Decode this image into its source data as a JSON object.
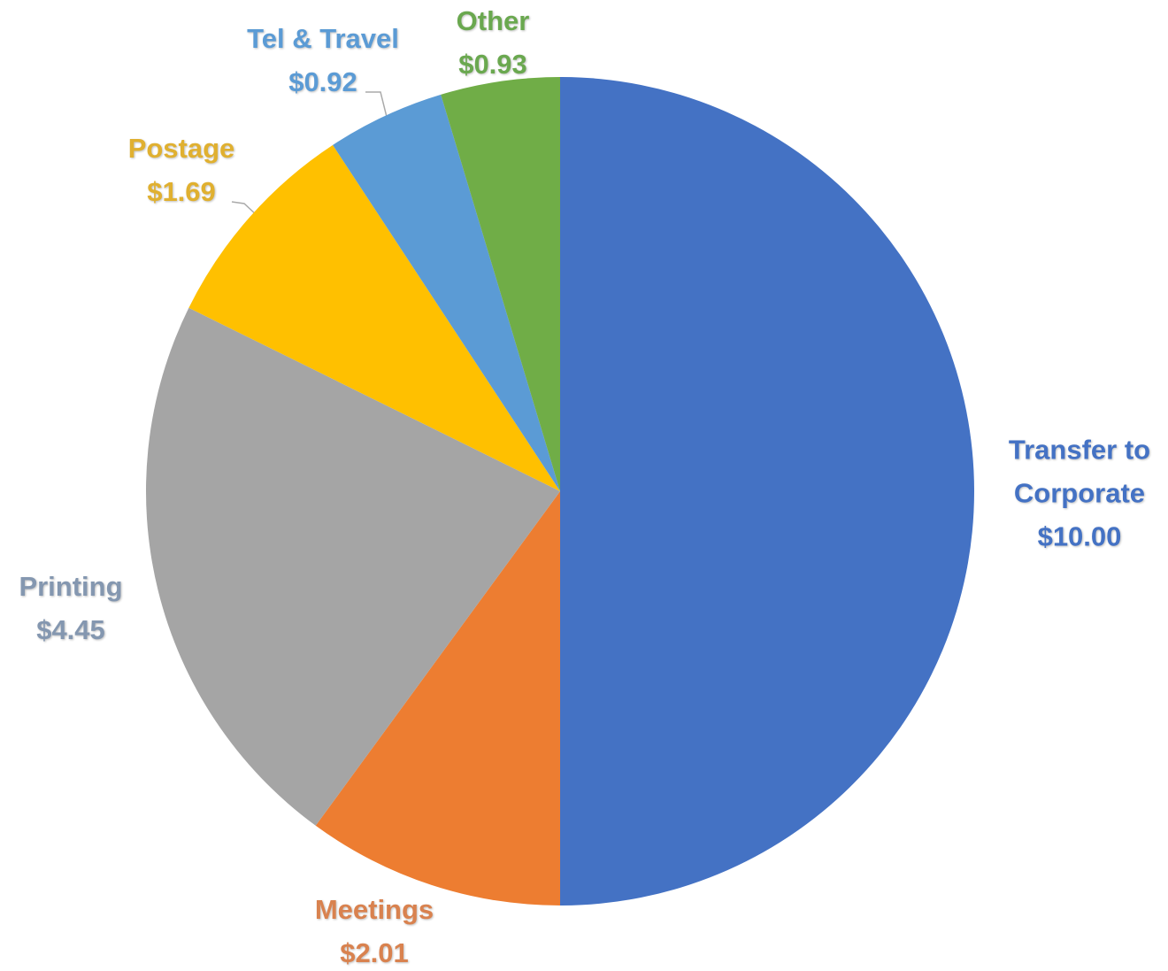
{
  "chart_data": {
    "type": "pie",
    "categories": [
      "Transfer to Corporate",
      "Meetings",
      "Printing",
      "Postage",
      "Tel & Travel",
      "Other"
    ],
    "values": [
      10.0,
      2.01,
      4.45,
      1.69,
      0.92,
      0.93
    ],
    "value_labels": [
      "$10.00",
      "$2.01",
      "$4.45",
      "$1.69",
      "$0.92",
      "$0.93"
    ],
    "colors": [
      "#4472c4",
      "#ed7d31",
      "#a5a5a5",
      "#ffc000",
      "#5b9bd5",
      "#70ad47"
    ],
    "label_colors": [
      "#4472c4",
      "#d9824f",
      "#8497b0",
      "#e0b030",
      "#5b9bd5",
      "#6aa84f"
    ]
  }
}
